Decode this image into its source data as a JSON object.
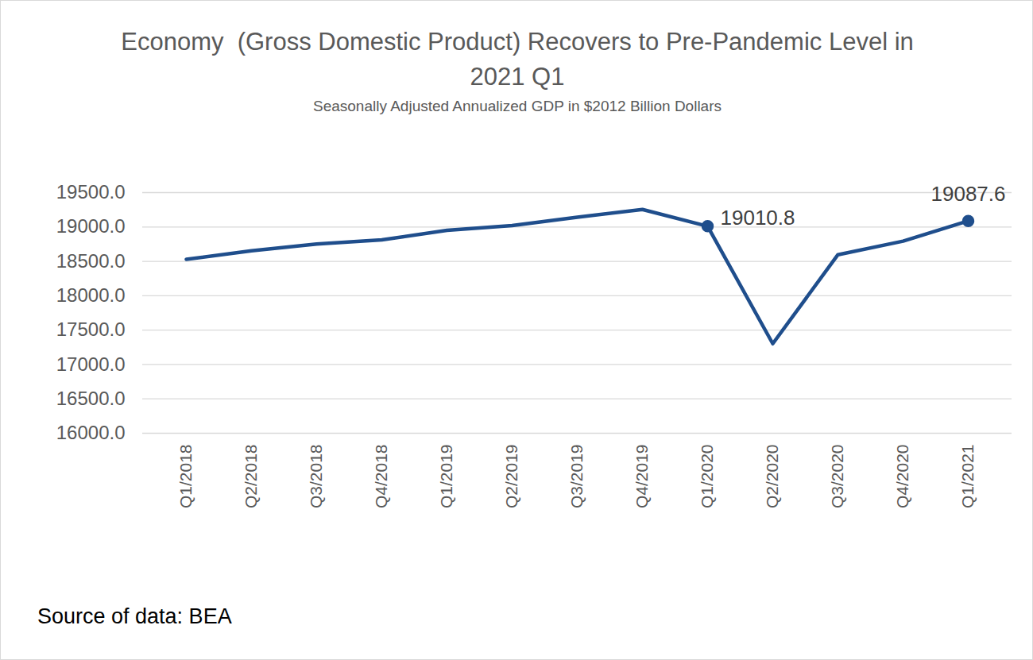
{
  "chart_data": {
    "type": "line",
    "title": "Economy  (Gross Domestic Product) Recovers to Pre-Pandemic Level in 2021 Q1",
    "subtitle": "Seasonally Adjusted Annualized GDP in $2012 Billion Dollars",
    "caption": "Source of data: BEA",
    "categories": [
      "Q1/2018",
      "Q2/2018",
      "Q3/2018",
      "Q4/2018",
      "Q1/2019",
      "Q2/2019",
      "Q3/2019",
      "Q4/2019",
      "Q1/2020",
      "Q2/2020",
      "Q3/2020",
      "Q4/2020",
      "Q1/2021"
    ],
    "values": [
      18530,
      18654,
      18752,
      18813,
      18951,
      19021,
      19141,
      19254,
      19010.8,
      17302,
      18597,
      18794,
      19087.6
    ],
    "color": "#1f4e8c",
    "ylim": [
      16000,
      19500
    ],
    "yticks": [
      {
        "value": 16000,
        "label": "16000.0"
      },
      {
        "value": 16500,
        "label": "16500.0"
      },
      {
        "value": 17000,
        "label": "17000.0"
      },
      {
        "value": 17500,
        "label": "17500.0"
      },
      {
        "value": 18000,
        "label": "18000.0"
      },
      {
        "value": 18500,
        "label": "18500.0"
      },
      {
        "value": 19000,
        "label": "19000.0"
      },
      {
        "value": 19500,
        "label": "19500.0"
      }
    ],
    "grid": true,
    "marker": "circle",
    "annotations": [
      {
        "category": "Q1/2020",
        "value": 19010.8
      },
      {
        "category": "Q1/2021",
        "value": 19087.6
      }
    ]
  }
}
